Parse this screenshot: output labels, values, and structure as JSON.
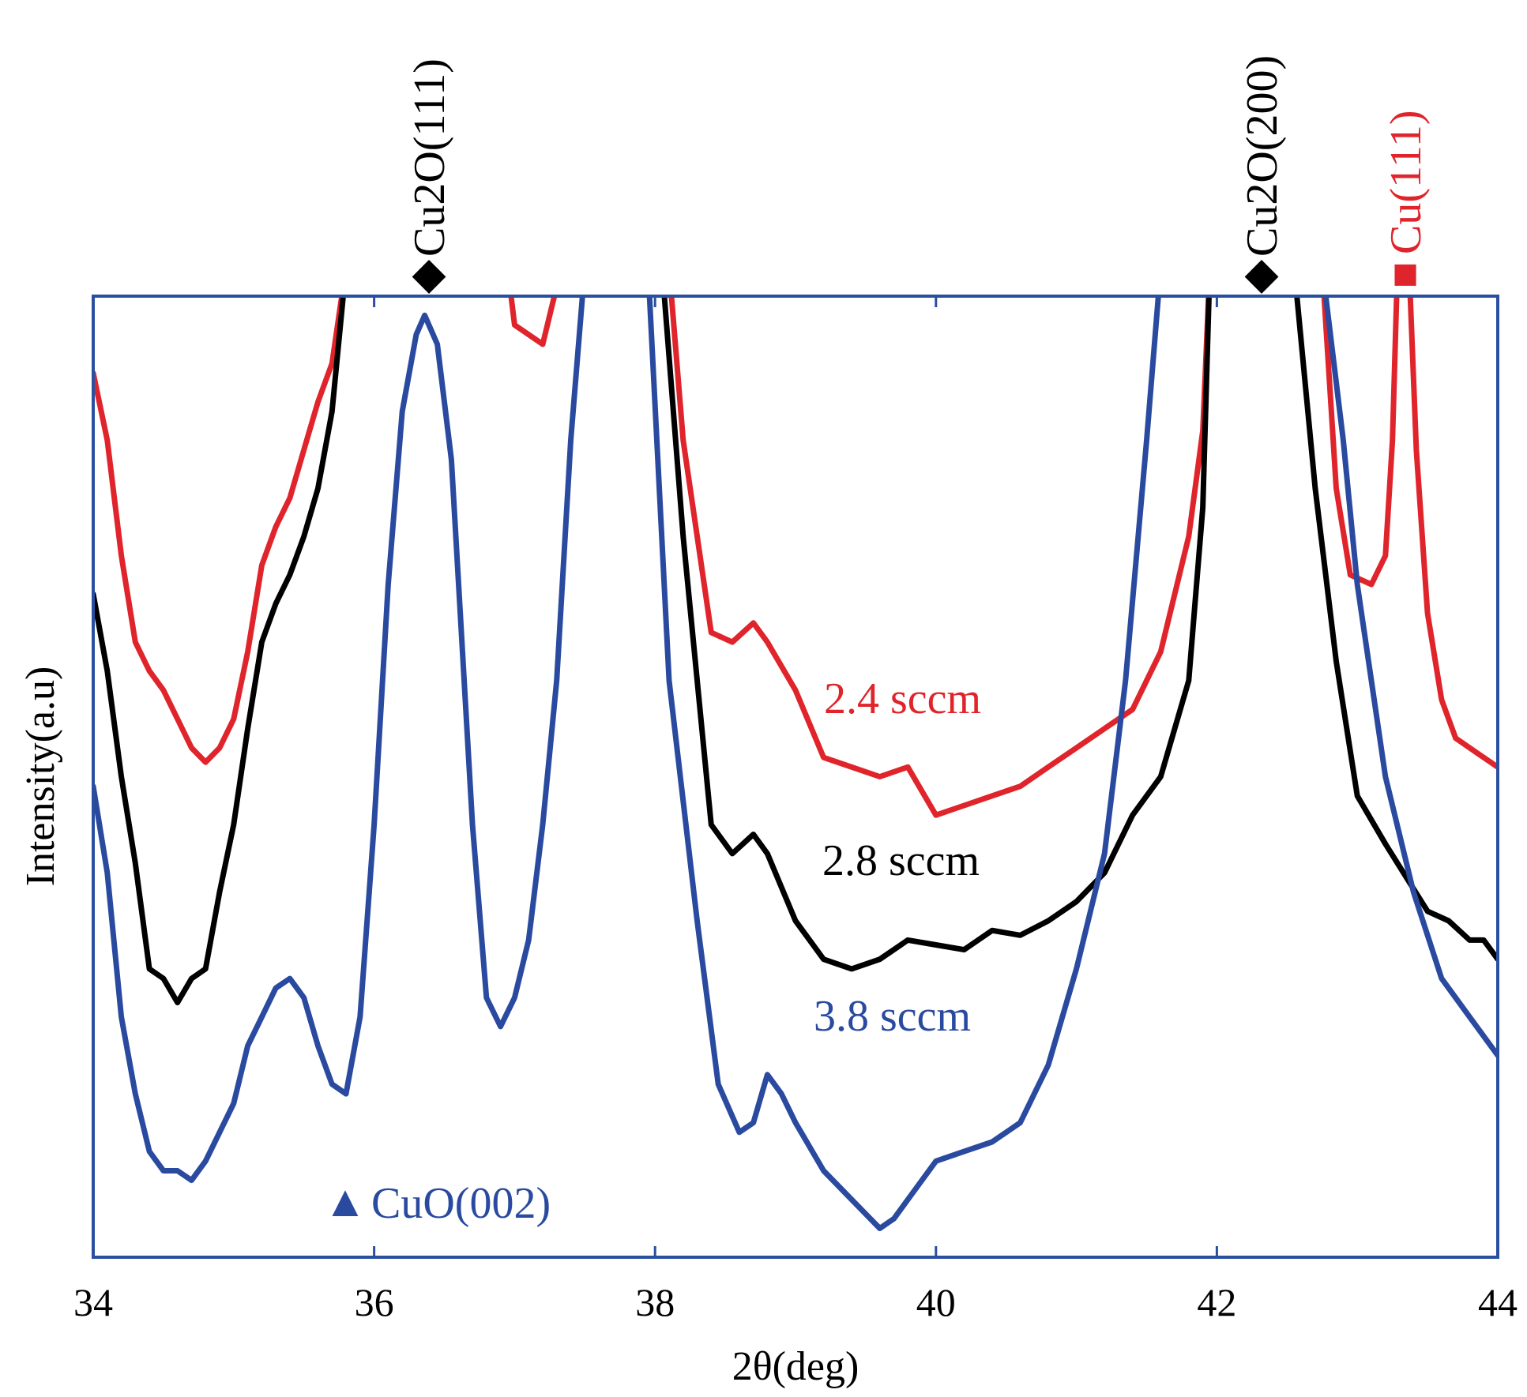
{
  "chart_data": {
    "type": "line",
    "title": "",
    "xlabel": "2θ(deg)",
    "ylabel": "Intensity(a.u)",
    "xlim": [
      34,
      44
    ],
    "ylim": [
      0,
      100
    ],
    "grid": false,
    "x_ticks": [
      "34",
      "36",
      "38",
      "40",
      "42",
      "44"
    ],
    "colors": {
      "frame": "#2a4f9e",
      "red": "#e0242b",
      "black": "#000000",
      "blue": "#2a4aa0"
    },
    "series": [
      {
        "name": "2.4 sccm",
        "color": "#e0242b",
        "points": [
          [
            34.0,
            92
          ],
          [
            34.1,
            85
          ],
          [
            34.2,
            73
          ],
          [
            34.3,
            64
          ],
          [
            34.4,
            61
          ],
          [
            34.5,
            59
          ],
          [
            34.6,
            56
          ],
          [
            34.7,
            53
          ],
          [
            34.8,
            51.5
          ],
          [
            34.9,
            53
          ],
          [
            35.0,
            56
          ],
          [
            35.1,
            63
          ],
          [
            35.2,
            72
          ],
          [
            35.3,
            76
          ],
          [
            35.4,
            79
          ],
          [
            35.5,
            84
          ],
          [
            35.6,
            89
          ],
          [
            35.7,
            93
          ],
          [
            35.8,
            103
          ],
          [
            36.95,
            103
          ],
          [
            37.0,
            97
          ],
          [
            37.2,
            95
          ],
          [
            37.3,
            101
          ],
          [
            37.35,
            103
          ],
          [
            38.1,
            103
          ],
          [
            38.2,
            85
          ],
          [
            38.4,
            65
          ],
          [
            38.55,
            64
          ],
          [
            38.7,
            66
          ],
          [
            38.8,
            64
          ],
          [
            39.0,
            59
          ],
          [
            39.2,
            52
          ],
          [
            39.4,
            51
          ],
          [
            39.6,
            50
          ],
          [
            39.8,
            51
          ],
          [
            40.0,
            46
          ],
          [
            40.2,
            47
          ],
          [
            40.4,
            48
          ],
          [
            40.6,
            49
          ],
          [
            40.8,
            51
          ],
          [
            41.0,
            53
          ],
          [
            41.2,
            55
          ],
          [
            41.4,
            57
          ],
          [
            41.6,
            63
          ],
          [
            41.8,
            75
          ],
          [
            41.9,
            86
          ],
          [
            41.95,
            103
          ],
          [
            42.75,
            103
          ],
          [
            42.85,
            80
          ],
          [
            42.95,
            71
          ],
          [
            43.1,
            70
          ],
          [
            43.2,
            73
          ],
          [
            43.25,
            85
          ],
          [
            43.3,
            110
          ],
          [
            43.35,
            110
          ],
          [
            43.42,
            84
          ],
          [
            43.5,
            67
          ],
          [
            43.6,
            58
          ],
          [
            43.7,
            54
          ],
          [
            43.85,
            52.5
          ],
          [
            44.0,
            51
          ]
        ]
      },
      {
        "name": "2.8 sccm",
        "color": "#000000",
        "points": [
          [
            34.0,
            69
          ],
          [
            34.1,
            61
          ],
          [
            34.2,
            50
          ],
          [
            34.3,
            41
          ],
          [
            34.4,
            30
          ],
          [
            34.5,
            29
          ],
          [
            34.6,
            26.5
          ],
          [
            34.7,
            29
          ],
          [
            34.8,
            30
          ],
          [
            34.9,
            38
          ],
          [
            35.0,
            45
          ],
          [
            35.1,
            55
          ],
          [
            35.2,
            64
          ],
          [
            35.3,
            68
          ],
          [
            35.4,
            71
          ],
          [
            35.5,
            75
          ],
          [
            35.6,
            80
          ],
          [
            35.7,
            88
          ],
          [
            35.8,
            103
          ],
          [
            38.05,
            103
          ],
          [
            38.2,
            75
          ],
          [
            38.4,
            45
          ],
          [
            38.55,
            42
          ],
          [
            38.7,
            44
          ],
          [
            38.8,
            42
          ],
          [
            39.0,
            35
          ],
          [
            39.2,
            31
          ],
          [
            39.4,
            30
          ],
          [
            39.6,
            31
          ],
          [
            39.8,
            33
          ],
          [
            40.0,
            32.5
          ],
          [
            40.2,
            32
          ],
          [
            40.4,
            34
          ],
          [
            40.6,
            33.5
          ],
          [
            40.8,
            35
          ],
          [
            41.0,
            37
          ],
          [
            41.2,
            40
          ],
          [
            41.4,
            46
          ],
          [
            41.6,
            50
          ],
          [
            41.8,
            60
          ],
          [
            41.9,
            78
          ],
          [
            41.95,
            103
          ],
          [
            42.55,
            103
          ],
          [
            42.7,
            80
          ],
          [
            42.85,
            62
          ],
          [
            43.0,
            48
          ],
          [
            43.2,
            43
          ],
          [
            43.5,
            36
          ],
          [
            43.65,
            35
          ],
          [
            43.8,
            33
          ],
          [
            43.9,
            33
          ],
          [
            44.0,
            31
          ]
        ]
      },
      {
        "name": "3.8 sccm",
        "color": "#2a4aa0",
        "points": [
          [
            34.0,
            49
          ],
          [
            34.1,
            40
          ],
          [
            34.2,
            25
          ],
          [
            34.3,
            17
          ],
          [
            34.4,
            11
          ],
          [
            34.5,
            9
          ],
          [
            34.6,
            9
          ],
          [
            34.7,
            8
          ],
          [
            34.8,
            10
          ],
          [
            34.9,
            13
          ],
          [
            35.0,
            16
          ],
          [
            35.1,
            22
          ],
          [
            35.2,
            25
          ],
          [
            35.3,
            28
          ],
          [
            35.4,
            29
          ],
          [
            35.5,
            27
          ],
          [
            35.6,
            22
          ],
          [
            35.7,
            18
          ],
          [
            35.8,
            17
          ],
          [
            35.9,
            25
          ],
          [
            36.0,
            45
          ],
          [
            36.1,
            70
          ],
          [
            36.2,
            88
          ],
          [
            36.3,
            96
          ],
          [
            36.36,
            98
          ],
          [
            36.45,
            95
          ],
          [
            36.55,
            83
          ],
          [
            36.7,
            45
          ],
          [
            36.8,
            27
          ],
          [
            36.9,
            24
          ],
          [
            37.0,
            27
          ],
          [
            37.1,
            33
          ],
          [
            37.2,
            45
          ],
          [
            37.3,
            60
          ],
          [
            37.4,
            85
          ],
          [
            37.5,
            103
          ],
          [
            37.95,
            103
          ],
          [
            38.1,
            60
          ],
          [
            38.3,
            35
          ],
          [
            38.45,
            18
          ],
          [
            38.6,
            13
          ],
          [
            38.7,
            14
          ],
          [
            38.8,
            19
          ],
          [
            38.9,
            17
          ],
          [
            39.0,
            14
          ],
          [
            39.2,
            9
          ],
          [
            39.4,
            6
          ],
          [
            39.6,
            3
          ],
          [
            39.7,
            4
          ],
          [
            39.8,
            6
          ],
          [
            40.0,
            10
          ],
          [
            40.2,
            11
          ],
          [
            40.4,
            12
          ],
          [
            40.6,
            14
          ],
          [
            40.8,
            20
          ],
          [
            41.0,
            30
          ],
          [
            41.2,
            42
          ],
          [
            41.35,
            60
          ],
          [
            41.5,
            85
          ],
          [
            41.6,
            103
          ],
          [
            42.75,
            103
          ],
          [
            42.9,
            85
          ],
          [
            43.0,
            70
          ],
          [
            43.2,
            50
          ],
          [
            43.4,
            38
          ],
          [
            43.6,
            29
          ],
          [
            43.8,
            25
          ],
          [
            44.0,
            21
          ]
        ]
      }
    ],
    "annotations": {
      "series_labels": [
        "2.4 sccm",
        "2.8 sccm",
        "3.8 sccm"
      ],
      "peaks": [
        {
          "label": "Cu2O(111)",
          "marker": "◆",
          "x": 36.38,
          "color": "#000000"
        },
        {
          "label": "Cu2O(200)",
          "marker": "◆",
          "x": 42.35,
          "color": "#000000"
        },
        {
          "label": "Cu(111)",
          "marker": "■",
          "x": 43.35,
          "color": "#e0242b"
        }
      ],
      "legend_marker": {
        "label": "CuO(002)",
        "marker": "▲",
        "color": "#2a4aa0"
      }
    }
  }
}
